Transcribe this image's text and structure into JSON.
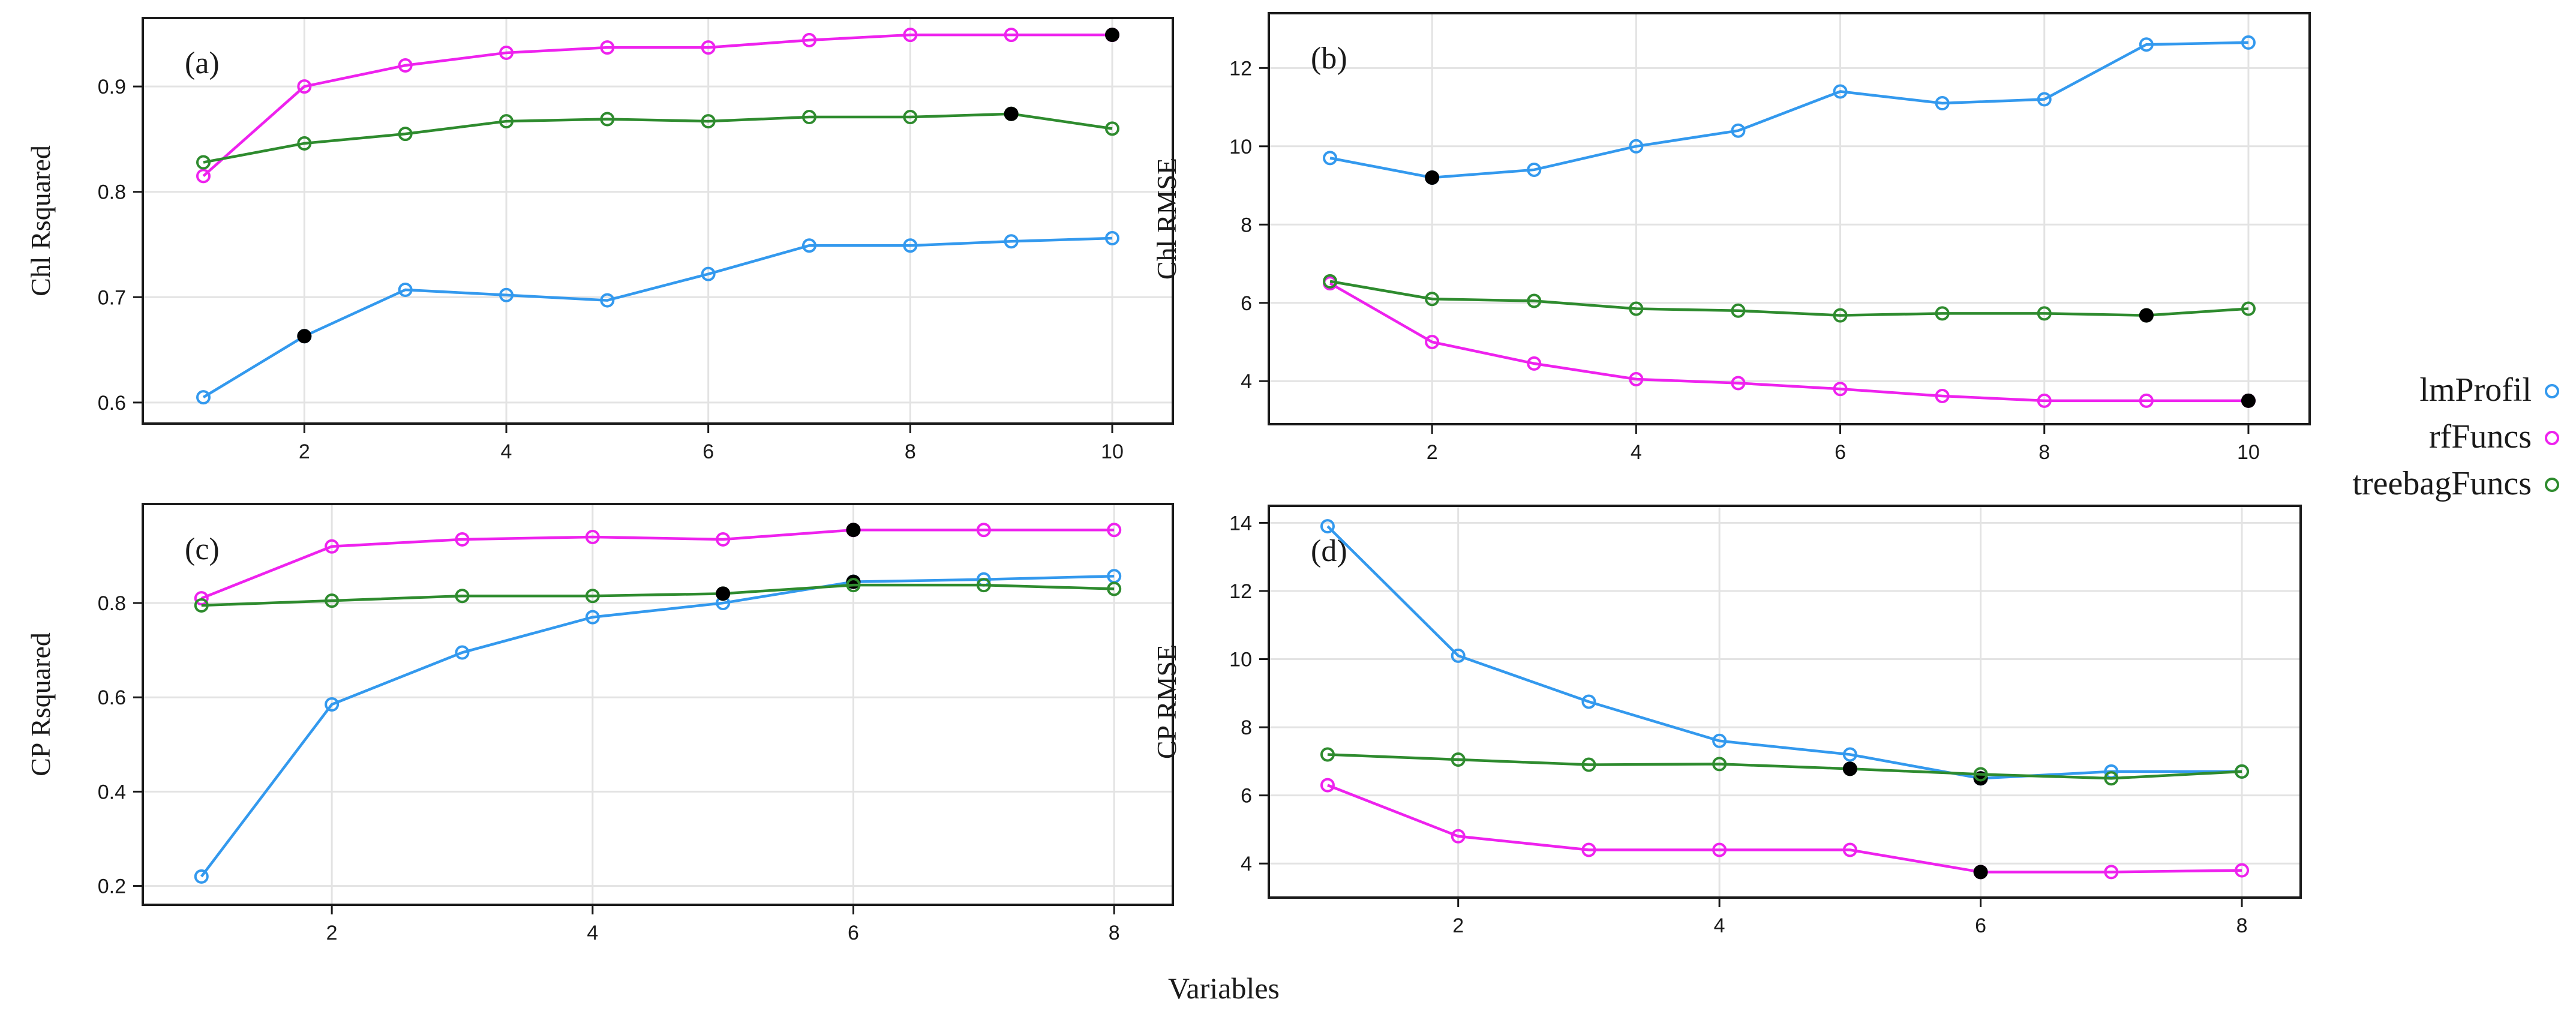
{
  "figure": {
    "xlabel": "Variables"
  },
  "legend": {
    "placement": "right",
    "entries": [
      {
        "name": "lmProfil",
        "color": "#3399ee"
      },
      {
        "name": "rfFuncs",
        "color": "#ee22ee"
      },
      {
        "name": "treebagFuncs",
        "color": "#2e8b2e"
      }
    ]
  },
  "chart_data": [
    {
      "type": "line",
      "panel_label": "(a)",
      "ylabel": "Chl  Rsquared",
      "xlabel": "",
      "x": [
        1,
        2,
        3,
        4,
        5,
        6,
        7,
        8,
        9,
        10
      ],
      "xticks": [
        2,
        4,
        6,
        8,
        10
      ],
      "ylim": [
        0.58,
        0.965
      ],
      "yticks": [
        0.6,
        0.7,
        0.8,
        0.9
      ],
      "yticklabels": [
        "0.6",
        "0.7",
        "0.8",
        "0.9"
      ],
      "xlim": [
        0.4,
        10.6
      ],
      "grid": true,
      "series": [
        {
          "name": "lmProfil",
          "values": [
            0.605,
            0.663,
            0.707,
            0.702,
            0.697,
            0.722,
            0.749,
            0.749,
            0.753,
            0.756
          ],
          "selected_index": 1
        },
        {
          "name": "rfFuncs",
          "values": [
            0.815,
            0.9,
            0.92,
            0.932,
            0.937,
            0.937,
            0.944,
            0.949,
            0.949,
            0.949
          ],
          "selected_index": 9
        },
        {
          "name": "treebagFuncs",
          "values": [
            0.828,
            0.846,
            0.855,
            0.867,
            0.869,
            0.867,
            0.871,
            0.871,
            0.874,
            0.86
          ],
          "selected_index": 8
        }
      ]
    },
    {
      "type": "line",
      "panel_label": "(b)",
      "ylabel": "Chl  RMSE",
      "xlabel": "",
      "x": [
        1,
        2,
        3,
        4,
        5,
        6,
        7,
        8,
        9,
        10
      ],
      "xticks": [
        2,
        4,
        6,
        8,
        10
      ],
      "ylim": [
        2.9,
        13.4
      ],
      "yticks": [
        4,
        6,
        8,
        10,
        12
      ],
      "yticklabels": [
        "4",
        "6",
        "8",
        "10",
        "12"
      ],
      "xlim": [
        0.4,
        10.6
      ],
      "grid": true,
      "series": [
        {
          "name": "lmProfil",
          "values": [
            9.7,
            9.2,
            9.4,
            10.0,
            10.4,
            11.4,
            11.1,
            11.2,
            12.6,
            12.65
          ],
          "selected_index": 1
        },
        {
          "name": "rfFuncs",
          "values": [
            6.5,
            5.0,
            4.45,
            4.05,
            3.95,
            3.8,
            3.62,
            3.5,
            3.5,
            3.5
          ],
          "selected_index": 9
        },
        {
          "name": "treebagFuncs",
          "values": [
            6.55,
            6.1,
            6.05,
            5.85,
            5.8,
            5.68,
            5.73,
            5.73,
            5.68,
            5.85
          ],
          "selected_index": 8
        }
      ]
    },
    {
      "type": "line",
      "panel_label": "(c)",
      "ylabel": "CP  Rsquared",
      "xlabel": "",
      "x": [
        1,
        2,
        3,
        4,
        5,
        6,
        7,
        8
      ],
      "xticks": [
        2,
        4,
        6,
        8
      ],
      "ylim": [
        0.16,
        1.01
      ],
      "yticks": [
        0.2,
        0.4,
        0.6,
        0.8
      ],
      "yticklabels": [
        "0.2",
        "0.4",
        "0.6",
        "0.8"
      ],
      "xlim": [
        0.55,
        8.45
      ],
      "grid": true,
      "series": [
        {
          "name": "lmProfil",
          "values": [
            0.22,
            0.585,
            0.695,
            0.77,
            0.8,
            0.845,
            0.85,
            0.857
          ],
          "selected_index": 5
        },
        {
          "name": "rfFuncs",
          "values": [
            0.81,
            0.92,
            0.935,
            0.94,
            0.935,
            0.955,
            0.955,
            0.955
          ],
          "selected_index": 5
        },
        {
          "name": "treebagFuncs",
          "values": [
            0.795,
            0.805,
            0.815,
            0.815,
            0.82,
            0.838,
            0.838,
            0.83
          ],
          "selected_index": 4
        }
      ]
    },
    {
      "type": "line",
      "panel_label": "(d)",
      "ylabel": "CP  RMSE",
      "xlabel": "",
      "x": [
        1,
        2,
        3,
        4,
        5,
        6,
        7,
        8
      ],
      "xticks": [
        2,
        4,
        6,
        8
      ],
      "ylim": [
        3.0,
        14.5
      ],
      "yticks": [
        4,
        6,
        8,
        10,
        12,
        14
      ],
      "yticklabels": [
        "4",
        "6",
        "8",
        "10",
        "12",
        "14"
      ],
      "xlim": [
        0.55,
        8.45
      ],
      "grid": true,
      "series": [
        {
          "name": "lmProfil",
          "values": [
            13.9,
            10.1,
            8.75,
            7.6,
            7.2,
            6.5,
            6.7,
            6.7
          ],
          "selected_index": 5
        },
        {
          "name": "rfFuncs",
          "values": [
            6.3,
            4.8,
            4.4,
            4.4,
            4.4,
            3.75,
            3.75,
            3.8
          ],
          "selected_index": 5
        },
        {
          "name": "treebagFuncs",
          "values": [
            7.2,
            7.05,
            6.9,
            6.92,
            6.78,
            6.62,
            6.5,
            6.7
          ],
          "selected_index": 4
        }
      ]
    }
  ]
}
